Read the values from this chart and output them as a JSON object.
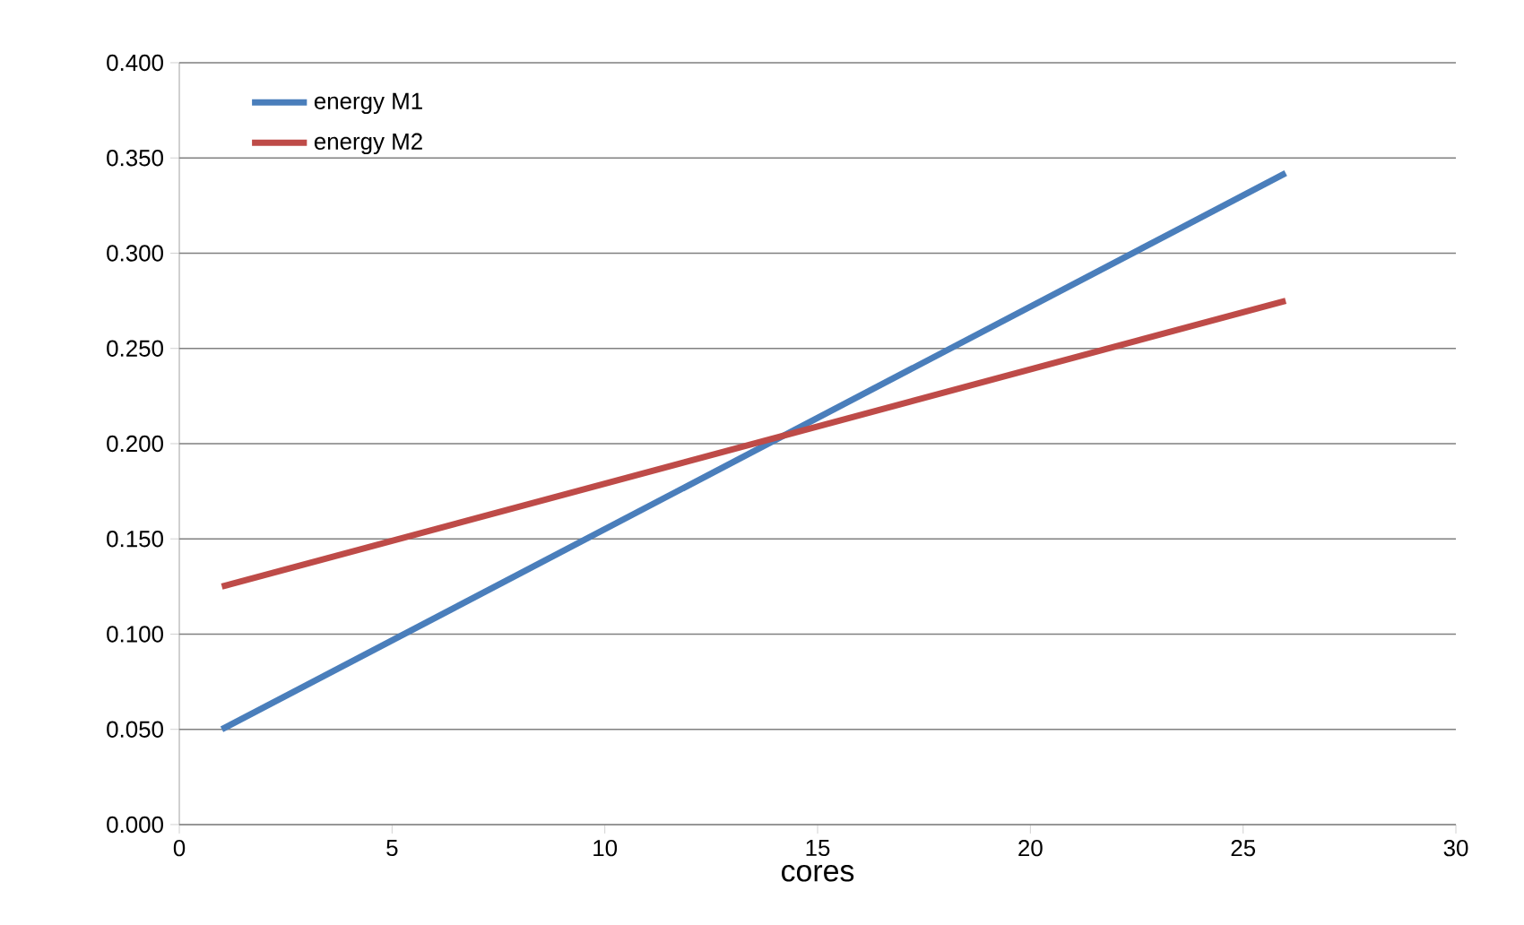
{
  "chart_data": {
    "type": "line",
    "xlabel": "cores",
    "x": [
      1,
      26
    ],
    "series": [
      {
        "name": "energy M1",
        "color": "#4a7ebb",
        "values": [
          0.05,
          0.342
        ]
      },
      {
        "name": "energy M2",
        "color": "#be4b48",
        "values": [
          0.125,
          0.275
        ]
      }
    ],
    "xlim": [
      0,
      30
    ],
    "xticks": [
      0,
      5,
      10,
      15,
      20,
      25,
      30
    ],
    "ylim": [
      0,
      0.4
    ],
    "yticks": [
      {
        "value": 0,
        "label": "0.000"
      },
      {
        "value": 0.05,
        "label": "0.050"
      },
      {
        "value": 0.1,
        "label": "0.100"
      },
      {
        "value": 0.15,
        "label": "0.150"
      },
      {
        "value": 0.2,
        "label": "0.200"
      },
      {
        "value": 0.25,
        "label": "0.250"
      },
      {
        "value": 0.3,
        "label": "0.300"
      },
      {
        "value": 0.35,
        "label": "0.350"
      },
      {
        "value": 0.4,
        "label": "0.400"
      }
    ],
    "grid": "y",
    "legend": "top left",
    "line_style": "solid",
    "marker": "none"
  }
}
